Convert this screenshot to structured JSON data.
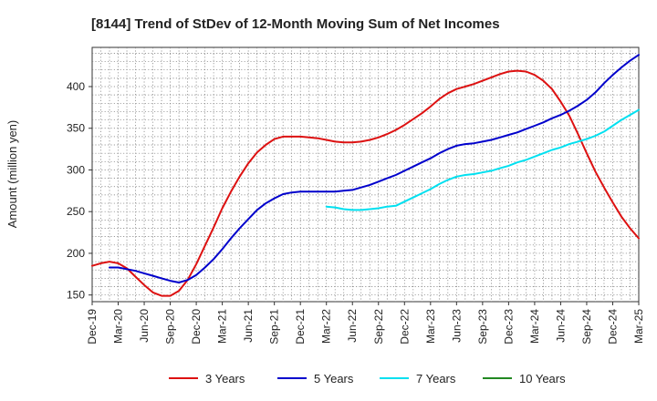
{
  "chart_data": {
    "type": "line",
    "title": "[8144]  Trend of StDev of 12-Month Moving Sum of Net Incomes",
    "xlabel": "",
    "ylabel": "Amount (million yen)",
    "ylim": [
      142,
      447
    ],
    "yticks": [
      150,
      200,
      250,
      300,
      350,
      400
    ],
    "xlim": [
      "2019-12",
      "2025-03"
    ],
    "xtick_labels": [
      "Dec-19",
      "Mar-20",
      "Jun-20",
      "Sep-20",
      "Dec-20",
      "Mar-21",
      "Jun-21",
      "Sep-21",
      "Dec-21",
      "Mar-22",
      "Jun-22",
      "Sep-22",
      "Dec-22",
      "Mar-23",
      "Jun-23",
      "Sep-23",
      "Dec-23",
      "Mar-24",
      "Jun-24",
      "Sep-24",
      "Dec-24",
      "Mar-25"
    ],
    "grid": true,
    "legend_position": "bottom",
    "series": [
      {
        "name": "3 Years",
        "color": "#dd1111",
        "points": [
          [
            "2019-12",
            185
          ],
          [
            "2020-01",
            188
          ],
          [
            "2020-02",
            190
          ],
          [
            "2020-03",
            188
          ],
          [
            "2020-04",
            182
          ],
          [
            "2020-05",
            172
          ],
          [
            "2020-06",
            162
          ],
          [
            "2020-07",
            153
          ],
          [
            "2020-08",
            149
          ],
          [
            "2020-09",
            149
          ],
          [
            "2020-10",
            155
          ],
          [
            "2020-11",
            168
          ],
          [
            "2020-12",
            187
          ],
          [
            "2021-01",
            209
          ],
          [
            "2021-02",
            231
          ],
          [
            "2021-03",
            254
          ],
          [
            "2021-04",
            274
          ],
          [
            "2021-05",
            292
          ],
          [
            "2021-06",
            308
          ],
          [
            "2021-07",
            321
          ],
          [
            "2021-08",
            330
          ],
          [
            "2021-09",
            337
          ],
          [
            "2021-10",
            340
          ],
          [
            "2021-11",
            340
          ],
          [
            "2021-12",
            340
          ],
          [
            "2022-01",
            339
          ],
          [
            "2022-02",
            338
          ],
          [
            "2022-03",
            336
          ],
          [
            "2022-04",
            334
          ],
          [
            "2022-05",
            333
          ],
          [
            "2022-06",
            333
          ],
          [
            "2022-07",
            334
          ],
          [
            "2022-08",
            336
          ],
          [
            "2022-09",
            339
          ],
          [
            "2022-10",
            343
          ],
          [
            "2022-11",
            348
          ],
          [
            "2022-12",
            354
          ],
          [
            "2023-01",
            361
          ],
          [
            "2023-02",
            368
          ],
          [
            "2023-03",
            376
          ],
          [
            "2023-04",
            385
          ],
          [
            "2023-05",
            392
          ],
          [
            "2023-06",
            397
          ],
          [
            "2023-07",
            400
          ],
          [
            "2023-08",
            403
          ],
          [
            "2023-09",
            407
          ],
          [
            "2023-10",
            411
          ],
          [
            "2023-11",
            415
          ],
          [
            "2023-12",
            418
          ],
          [
            "2024-01",
            419
          ],
          [
            "2024-02",
            418
          ],
          [
            "2024-03",
            414
          ],
          [
            "2024-04",
            407
          ],
          [
            "2024-05",
            397
          ],
          [
            "2024-06",
            382
          ],
          [
            "2024-07",
            365
          ],
          [
            "2024-08",
            343
          ],
          [
            "2024-09",
            320
          ],
          [
            "2024-10",
            298
          ],
          [
            "2024-11",
            279
          ],
          [
            "2024-12",
            261
          ],
          [
            "2025-01",
            244
          ],
          [
            "2025-02",
            230
          ],
          [
            "2025-03",
            218
          ]
        ]
      },
      {
        "name": "5 Years",
        "color": "#0000cc",
        "points": [
          [
            "2020-02",
            183
          ],
          [
            "2020-03",
            183
          ],
          [
            "2020-04",
            181
          ],
          [
            "2020-05",
            179
          ],
          [
            "2020-06",
            176
          ],
          [
            "2020-07",
            173
          ],
          [
            "2020-08",
            170
          ],
          [
            "2020-09",
            167
          ],
          [
            "2020-10",
            165
          ],
          [
            "2020-11",
            168
          ],
          [
            "2020-12",
            174
          ],
          [
            "2021-01",
            183
          ],
          [
            "2021-02",
            193
          ],
          [
            "2021-03",
            205
          ],
          [
            "2021-04",
            218
          ],
          [
            "2021-05",
            230
          ],
          [
            "2021-06",
            241
          ],
          [
            "2021-07",
            252
          ],
          [
            "2021-08",
            260
          ],
          [
            "2021-09",
            266
          ],
          [
            "2021-10",
            271
          ],
          [
            "2021-11",
            273
          ],
          [
            "2021-12",
            274
          ],
          [
            "2022-01",
            274
          ],
          [
            "2022-02",
            274
          ],
          [
            "2022-03",
            274
          ],
          [
            "2022-04",
            274
          ],
          [
            "2022-05",
            275
          ],
          [
            "2022-06",
            276
          ],
          [
            "2022-07",
            279
          ],
          [
            "2022-08",
            282
          ],
          [
            "2022-09",
            286
          ],
          [
            "2022-10",
            290
          ],
          [
            "2022-11",
            294
          ],
          [
            "2022-12",
            299
          ],
          [
            "2023-01",
            304
          ],
          [
            "2023-02",
            309
          ],
          [
            "2023-03",
            314
          ],
          [
            "2023-04",
            320
          ],
          [
            "2023-05",
            325
          ],
          [
            "2023-06",
            329
          ],
          [
            "2023-07",
            331
          ],
          [
            "2023-08",
            332
          ],
          [
            "2023-09",
            334
          ],
          [
            "2023-10",
            336
          ],
          [
            "2023-11",
            339
          ],
          [
            "2023-12",
            342
          ],
          [
            "2024-01",
            345
          ],
          [
            "2024-02",
            349
          ],
          [
            "2024-03",
            353
          ],
          [
            "2024-04",
            357
          ],
          [
            "2024-05",
            362
          ],
          [
            "2024-06",
            366
          ],
          [
            "2024-07",
            371
          ],
          [
            "2024-08",
            377
          ],
          [
            "2024-09",
            384
          ],
          [
            "2024-10",
            393
          ],
          [
            "2024-11",
            404
          ],
          [
            "2024-12",
            414
          ],
          [
            "2025-01",
            423
          ],
          [
            "2025-02",
            431
          ],
          [
            "2025-03",
            438
          ]
        ]
      },
      {
        "name": "7 Years",
        "color": "#00e0f0",
        "points": [
          [
            "2022-03",
            256
          ],
          [
            "2022-04",
            255
          ],
          [
            "2022-05",
            253
          ],
          [
            "2022-06",
            252
          ],
          [
            "2022-07",
            252
          ],
          [
            "2022-08",
            253
          ],
          [
            "2022-09",
            254
          ],
          [
            "2022-10",
            256
          ],
          [
            "2022-11",
            257
          ],
          [
            "2022-12",
            262
          ],
          [
            "2023-01",
            267
          ],
          [
            "2023-02",
            272
          ],
          [
            "2023-03",
            277
          ],
          [
            "2023-04",
            283
          ],
          [
            "2023-05",
            288
          ],
          [
            "2023-06",
            292
          ],
          [
            "2023-07",
            294
          ],
          [
            "2023-08",
            295
          ],
          [
            "2023-09",
            297
          ],
          [
            "2023-10",
            299
          ],
          [
            "2023-11",
            302
          ],
          [
            "2023-12",
            305
          ],
          [
            "2024-01",
            309
          ],
          [
            "2024-02",
            312
          ],
          [
            "2024-03",
            316
          ],
          [
            "2024-04",
            320
          ],
          [
            "2024-05",
            324
          ],
          [
            "2024-06",
            327
          ],
          [
            "2024-07",
            331
          ],
          [
            "2024-08",
            334
          ],
          [
            "2024-09",
            337
          ],
          [
            "2024-10",
            341
          ],
          [
            "2024-11",
            346
          ],
          [
            "2024-12",
            353
          ],
          [
            "2025-01",
            360
          ],
          [
            "2025-02",
            366
          ],
          [
            "2025-03",
            372
          ]
        ]
      },
      {
        "name": "10 Years",
        "color": "#228822",
        "points": []
      }
    ]
  }
}
